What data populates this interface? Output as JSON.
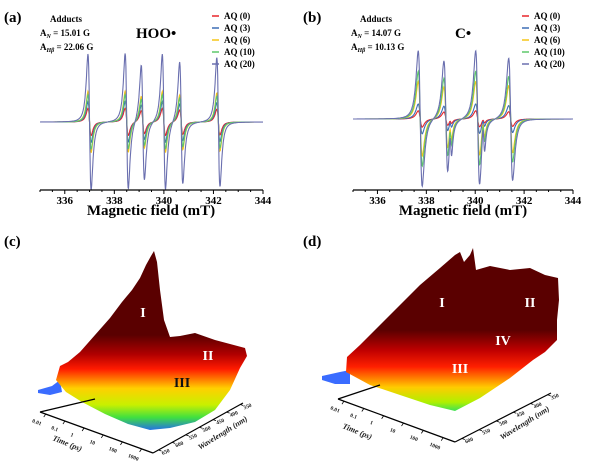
{
  "chart_data": [
    {
      "panel": "(a)",
      "type": "line",
      "title": "HOO•",
      "annotation": {
        "heading": "Adducts",
        "aN": "A",
        "aN_sub": "N",
        "aN_value": " = 15.01 G",
        "aH": "A",
        "aH_sub": "Hβ",
        "aH_value": " = 22.06 G"
      },
      "xlabel": "Magnetic field (mT)",
      "xlim": [
        335,
        344
      ],
      "xticks": [
        336,
        338,
        340,
        342,
        344
      ],
      "legend_position": "top-right",
      "line_positions_mT": [
        337.0,
        338.5,
        339.15,
        340.0,
        340.7,
        342.2
      ],
      "line_weights": [
        1,
        1,
        0.85,
        1,
        0.9,
        0.95
      ],
      "series": [
        {
          "name": "AQ (0)",
          "color": "#e8262a",
          "relative_amplitude": 0.2
        },
        {
          "name": "AQ (3)",
          "color": "#3e6db5",
          "relative_amplitude": 0.3
        },
        {
          "name": "AQ (6)",
          "color": "#f5c518",
          "relative_amplitude": 0.45
        },
        {
          "name": "AQ (10)",
          "color": "#5ec86a",
          "relative_amplitude": 0.4
        },
        {
          "name": "AQ (20)",
          "color": "#6a6faf",
          "relative_amplitude": 1.0
        }
      ]
    },
    {
      "panel": "(b)",
      "type": "line",
      "title": "C•",
      "annotation": {
        "heading": "Adducts",
        "aN": "A",
        "aN_sub": "N",
        "aN_value": " = 14.07 G",
        "aH": "A",
        "aH_sub": "Hβ",
        "aH_value": " = 10.13 G"
      },
      "xlabel": "Magnetic field (mT)",
      "xlim": [
        335,
        344
      ],
      "xticks": [
        336,
        338,
        340,
        342,
        344
      ],
      "legend_position": "top-right",
      "line_positions_mT": [
        337.75,
        338.8,
        339.0,
        340.1,
        340.35,
        341.45
      ],
      "line_weights": [
        1,
        0.85,
        0.25,
        1,
        0.25,
        0.9
      ],
      "series": [
        {
          "name": "AQ (0)",
          "color": "#e8262a",
          "relative_amplitude": 0.12
        },
        {
          "name": "AQ (3)",
          "color": "#3e6db5",
          "relative_amplitude": 0.22
        },
        {
          "name": "AQ (6)",
          "color": "#f5c518",
          "relative_amplitude": 0.55
        },
        {
          "name": "AQ (10)",
          "color": "#5ec86a",
          "relative_amplitude": 0.7
        },
        {
          "name": "AQ (20)",
          "color": "#6a6faf",
          "relative_amplitude": 1.0
        }
      ]
    },
    {
      "panel": "(c)",
      "type": "surface",
      "xlabel": "Time (ps)",
      "ylabel": "Wavelength (nm)",
      "time_ticks": [
        "0.01",
        "0.1",
        "1",
        "10",
        "100",
        "1000"
      ],
      "wavelength_ticks": [
        "650",
        "600",
        "550",
        "500",
        "450",
        "400",
        "350"
      ],
      "region_labels": [
        "I",
        "II",
        "III"
      ]
    },
    {
      "panel": "(d)",
      "type": "surface",
      "xlabel": "Time (ps)",
      "ylabel": "Wavelength (nm)",
      "time_ticks": [
        "0.01",
        "0.1",
        "1",
        "10",
        "100",
        "1000"
      ],
      "wavelength_ticks": [
        "600",
        "550",
        "500",
        "450",
        "400",
        "350"
      ],
      "region_labels": [
        "I",
        "II",
        "III",
        "IV"
      ]
    }
  ]
}
